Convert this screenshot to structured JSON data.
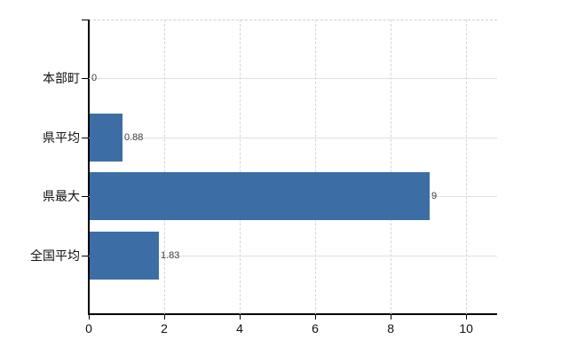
{
  "chart": {
    "bar_color": "#3c6ea5",
    "axis_color": "#000000",
    "hgrid_color": "#dce3dc",
    "vgrid_color": "#d8d3d8",
    "background_color": "#ffffff"
  },
  "chart_data": {
    "type": "bar",
    "orientation": "horizontal",
    "title": "",
    "xlabel": "",
    "ylabel": "",
    "categories": [
      "本部町",
      "県平均",
      "県最大",
      "全国平均"
    ],
    "values": [
      0,
      0.88,
      9,
      1.83
    ],
    "value_labels": [
      "0",
      "0.88",
      "9",
      "1.83"
    ],
    "xticks": [
      0,
      2,
      4,
      6,
      8,
      10
    ],
    "xtick_labels": [
      "0",
      "2",
      "4",
      "6",
      "8",
      "10"
    ],
    "xlim": [
      0,
      10.82
    ],
    "grid": true,
    "legend": false
  }
}
